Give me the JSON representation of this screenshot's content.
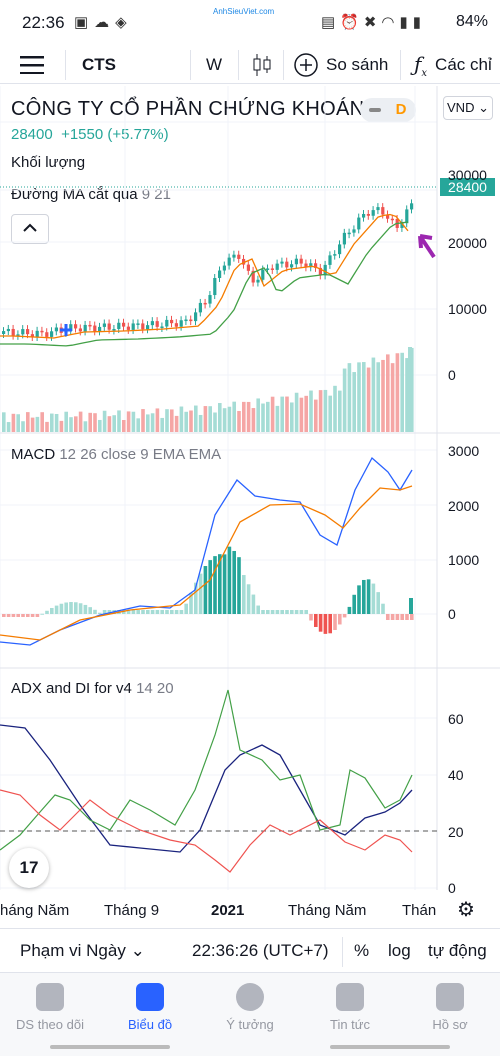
{
  "status": {
    "time": "22:36",
    "battery": "84%",
    "watermark": "AnhSieuViet.com"
  },
  "toolbar": {
    "symbol": "CTS",
    "interval": "W",
    "compare": "So sánh",
    "indicators": "Các chỉ"
  },
  "header": {
    "title": "CÔNG TY CỔ PHẦN CHỨNG KHOÁN...",
    "badge": "D",
    "currency": "VND",
    "price": "28400",
    "change": "+1550 (+5.77%)",
    "volume_label": "Khối lượng"
  },
  "ma": {
    "name": "Đường MA cắt qua",
    "params": "9 21"
  },
  "macd": {
    "name": "MACD",
    "params": "12 26 close 9 EMA EMA"
  },
  "adx": {
    "name": "ADX and DI for v4",
    "params": "14 20"
  },
  "price_axis": {
    "t30000": "30000",
    "t20000": "20000",
    "t10000": "10000",
    "t0": "0",
    "last": "28400"
  },
  "macd_axis": {
    "t3000": "3000",
    "t2000": "2000",
    "t1000": "1000",
    "t0": "0"
  },
  "adx_axis": {
    "t60": "60",
    "t40": "40",
    "t20": "20",
    "t0": "0"
  },
  "x_axis": {
    "l1": "háng Năm",
    "l2": "Tháng 9",
    "l3": "2021",
    "l4": "Tháng Năm",
    "l5": "Thán"
  },
  "bottom": {
    "range": "Phạm vi Ngày",
    "clock": "22:36:26 (UTC+7)",
    "pct": "%",
    "log": "log",
    "auto": "tự động"
  },
  "nav": {
    "watch": "DS theo dõi",
    "chart": "Biểu đồ",
    "ideas": "Ý tưởng",
    "news": "Tin tức",
    "profile": "Hồ sơ"
  },
  "colors": {
    "up": "#26a69a",
    "down": "#ef5350",
    "accent": "#2962ff",
    "ma_fast": "#f57c00",
    "ma_slow": "#43a047"
  }
}
